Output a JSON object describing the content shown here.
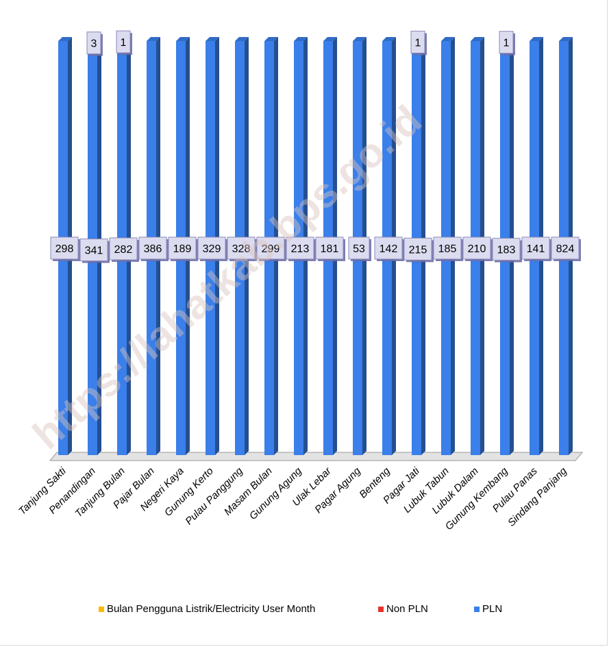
{
  "chart_data": {
    "type": "bar",
    "stacked": true,
    "categories": [
      "Tanjung Sakti",
      "Penandingan",
      "Tanjung Bulan",
      "Pajar Bulan",
      "Negeri Kaya",
      "Gunung Kerto",
      "Pulau Panggung",
      "Masam Bulan",
      "Gunung Agung",
      "Ulak Lebar",
      "Pagar Agung",
      "Benteng",
      "Pagar Jati",
      "Lubuk Tabun",
      "Lubuk Dalam",
      "Gunung Kembang",
      "Pulau Panas",
      "Sindang Panjang"
    ],
    "series": [
      {
        "name": "PLN",
        "color": "#3a7fea",
        "values": [
          298,
          341,
          282,
          386,
          189,
          329,
          328,
          299,
          213,
          181,
          53,
          142,
          215,
          185,
          210,
          183,
          141,
          824
        ]
      },
      {
        "name": "Non PLN",
        "color": "#e8322b",
        "values": [
          null,
          null,
          1,
          null,
          null,
          null,
          null,
          null,
          null,
          null,
          null,
          null,
          1,
          null,
          null,
          1,
          null,
          null
        ]
      },
      {
        "name": "Bulan Pengguna Listrik/Electricity User Month",
        "color": "#ffb800",
        "values": [
          null,
          3,
          null,
          null,
          null,
          null,
          null,
          null,
          null,
          null,
          null,
          null,
          null,
          null,
          null,
          null,
          null,
          null
        ]
      }
    ],
    "legend_order": [
      "Bulan Pengguna Listrik/Electricity User Month",
      "Non PLN",
      "PLN"
    ],
    "legend_position": "bottom",
    "note": "100% stacked bar chart (3D), each bar fills full height",
    "grid": false
  },
  "watermark": "https://lahatkab.bps.go.id"
}
